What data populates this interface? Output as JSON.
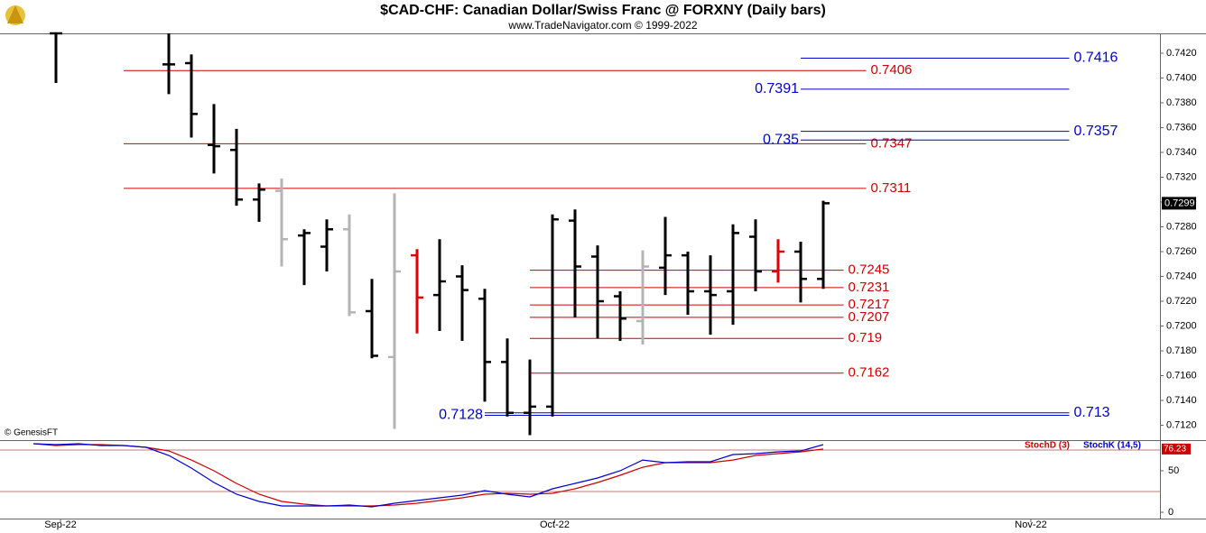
{
  "chart_data": [
    {
      "type": "ohlc",
      "title": "$CAD-CHF:  Canadian Dollar/Swiss Franc @ FORXNY  (Daily bars)",
      "subtitle": "www.TradeNavigator.com © 1999-2022",
      "source": "© GenesisFT",
      "x": [
        1,
        6,
        7,
        8,
        9,
        10,
        11,
        12,
        13,
        14,
        15,
        16,
        17,
        18,
        19,
        20,
        21,
        22,
        23,
        24,
        25,
        26,
        27,
        28,
        29,
        30,
        31,
        32,
        33,
        34,
        35
      ],
      "open": [
        0.7436,
        0.7411,
        0.7412,
        0.7346,
        0.7342,
        0.7302,
        0.7309,
        0.7273,
        0.7264,
        0.7278,
        0.7212,
        0.7175,
        0.7257,
        0.7225,
        0.724,
        0.7222,
        0.7171,
        0.713,
        0.7135,
        0.7285,
        0.7256,
        0.7224,
        0.7204,
        0.7247,
        0.7257,
        0.7228,
        0.7228,
        0.7272,
        0.7244,
        0.726,
        0.7238
      ],
      "high": [
        0.7436,
        0.7436,
        0.7419,
        0.7379,
        0.7359,
        0.7315,
        0.7319,
        0.7278,
        0.7286,
        0.729,
        0.7238,
        0.7307,
        0.7262,
        0.727,
        0.7249,
        0.723,
        0.719,
        0.7173,
        0.729,
        0.7294,
        0.7265,
        0.7228,
        0.7261,
        0.7288,
        0.726,
        0.7257,
        0.7282,
        0.7286,
        0.727,
        0.7268,
        0.7301
      ],
      "low": [
        0.7396,
        0.7387,
        0.7352,
        0.7323,
        0.7297,
        0.7284,
        0.7248,
        0.7233,
        0.7244,
        0.7208,
        0.7174,
        0.7117,
        0.7194,
        0.7196,
        0.7188,
        0.7139,
        0.7127,
        0.7112,
        0.7127,
        0.7207,
        0.719,
        0.7188,
        0.7185,
        0.7225,
        0.7209,
        0.7193,
        0.7201,
        0.7228,
        0.7235,
        0.7219,
        0.723
      ],
      "close": [
        0.7436,
        0.7411,
        0.7371,
        0.7345,
        0.7302,
        0.731,
        0.727,
        0.7275,
        0.7278,
        0.7211,
        0.7176,
        0.7244,
        0.7223,
        0.7236,
        0.7229,
        0.7171,
        0.713,
        0.7135,
        0.7286,
        0.7248,
        0.722,
        0.7206,
        0.7248,
        0.7257,
        0.7228,
        0.7225,
        0.7275,
        0.7244,
        0.726,
        0.7238,
        0.7299
      ],
      "colors": [
        "#000",
        "#000",
        "#000",
        "#000",
        "#000",
        "#000",
        "#b4b4b4",
        "#000",
        "#000",
        "#b4b4b4",
        "#000",
        "#b4b4b4",
        "#e00000",
        "#000",
        "#000",
        "#000",
        "#000",
        "#000",
        "#000",
        "#000",
        "#000",
        "#000",
        "#b4b4b4",
        "#000",
        "#000",
        "#000",
        "#000",
        "#000",
        "#e00000",
        "#000",
        "#000"
      ],
      "xlim": [
        -1.48,
        49.92
      ],
      "xticks": [
        {
          "value": 1.2,
          "label": "Sep-22"
        },
        {
          "value": 23.1,
          "label": "Oct-22"
        },
        {
          "value": 44.2,
          "label": "Nov-22"
        }
      ],
      "ylim": [
        0.7108,
        0.7436
      ],
      "yticks": [
        {
          "value": 0.712,
          "label": "0.7120"
        },
        {
          "value": 0.714,
          "label": "0.7140"
        },
        {
          "value": 0.716,
          "label": "0.7160"
        },
        {
          "value": 0.718,
          "label": "0.7180"
        },
        {
          "value": 0.72,
          "label": "0.7200"
        },
        {
          "value": 0.722,
          "label": "0.7220"
        },
        {
          "value": 0.724,
          "label": "0.7240"
        },
        {
          "value": 0.726,
          "label": "0.7260"
        },
        {
          "value": 0.728,
          "label": "0.7280"
        },
        {
          "value": 0.73,
          "label": "0.7300"
        },
        {
          "value": 0.732,
          "label": "0.7320"
        },
        {
          "value": 0.734,
          "label": "0.7340"
        },
        {
          "value": 0.736,
          "label": "0.7360"
        },
        {
          "value": 0.738,
          "label": "0.7380"
        },
        {
          "value": 0.74,
          "label": "0.7400"
        },
        {
          "value": 0.742,
          "label": "0.7420"
        }
      ],
      "last_price": 0.7299,
      "levels": [
        {
          "value": 0.7406,
          "color": "#cc0000",
          "x_range": [
            4,
            36.9
          ],
          "label_side": "right"
        },
        {
          "value": 0.7347,
          "color": "#cc0000",
          "x_range": [
            4,
            36.9
          ],
          "label_side": "right"
        },
        {
          "value": 0.7311,
          "color": "#cc0000",
          "x_range": [
            4,
            36.9
          ],
          "label_side": "right"
        },
        {
          "value": 0.7245,
          "color": "#cc0000",
          "x_range": [
            22,
            35.9
          ],
          "label_side": "right"
        },
        {
          "value": 0.7231,
          "color": "#cc0000",
          "x_range": [
            22,
            35.9
          ],
          "label_side": "right"
        },
        {
          "value": 0.7217,
          "color": "#cc0000",
          "x_range": [
            22,
            35.9
          ],
          "label_side": "right"
        },
        {
          "value": 0.7207,
          "color": "#cc0000",
          "x_range": [
            22,
            35.9
          ],
          "label_side": "right"
        },
        {
          "value": 0.719,
          "color": "#cc0000",
          "x_range": [
            22,
            35.9
          ],
          "label_side": "right"
        },
        {
          "value": 0.7162,
          "color": "#cc0000",
          "x_range": [
            22,
            35.9
          ],
          "label_side": "right"
        },
        {
          "value": 0.7416,
          "color": "#0000cc",
          "x_range": [
            34,
            45.9
          ],
          "label_side": "right"
        },
        {
          "value": 0.7391,
          "color": "#0000cc",
          "x_range": [
            34,
            45.9
          ],
          "label_side": "left"
        },
        {
          "value": 0.7357,
          "color": "#0000cc",
          "x_range": [
            34,
            45.9
          ],
          "label_side": "right"
        },
        {
          "value": 0.735,
          "color": "#0000cc",
          "x_range": [
            34,
            45.9
          ],
          "label_side": "left"
        },
        {
          "value": 0.713,
          "color": "#0000cc",
          "x_range": [
            20,
            45.9
          ],
          "label_side": "right"
        },
        {
          "value": 0.7128,
          "color": "#0000cc",
          "x_range": [
            20,
            45.9
          ],
          "label_side": "left"
        }
      ]
    },
    {
      "type": "stochastic",
      "x": [
        0,
        1,
        2,
        3,
        4,
        5,
        6,
        7,
        8,
        9,
        10,
        11,
        12,
        13,
        14,
        15,
        16,
        17,
        18,
        19,
        20,
        21,
        22,
        23,
        24,
        25,
        26,
        27,
        28,
        29,
        30,
        31,
        32,
        33,
        34,
        35
      ],
      "series": [
        {
          "name": "StochD (3)",
          "color": "#cc0000",
          "values": [
            82.6,
            80.4,
            81.5,
            81.5,
            80.4,
            78.3,
            73.9,
            63.0,
            50.0,
            34.8,
            21.7,
            13.0,
            9.8,
            7.6,
            7.6,
            7.6,
            8.7,
            10.9,
            14.1,
            17.4,
            21.7,
            22.8,
            21.7,
            22.8,
            28.3,
            35.9,
            44.6,
            54.3,
            59.8,
            59.8,
            59.8,
            63.0,
            68.5,
            70.7,
            72.8,
            76.23
          ]
        },
        {
          "name": "StochK (14,5)",
          "color": "#0000cc",
          "values": [
            82.6,
            81.5,
            82.6,
            80.4,
            80.4,
            78.3,
            68.5,
            53.3,
            35.9,
            21.7,
            13.0,
            7.6,
            7.6,
            7.6,
            8.7,
            6.5,
            10.9,
            14.1,
            17.4,
            20.7,
            26.1,
            21.7,
            18.5,
            28.3,
            34.8,
            41.3,
            50.0,
            63.0,
            59.8,
            60.9,
            60.9,
            69.6,
            70.7,
            72.8,
            73.9,
            81.5
          ]
        }
      ],
      "xlim": [
        -1.48,
        49.92
      ],
      "ylim": [
        -7.6,
        84.8
      ],
      "yticks": [
        0,
        50
      ],
      "levels": [
        75,
        25
      ]
    }
  ]
}
